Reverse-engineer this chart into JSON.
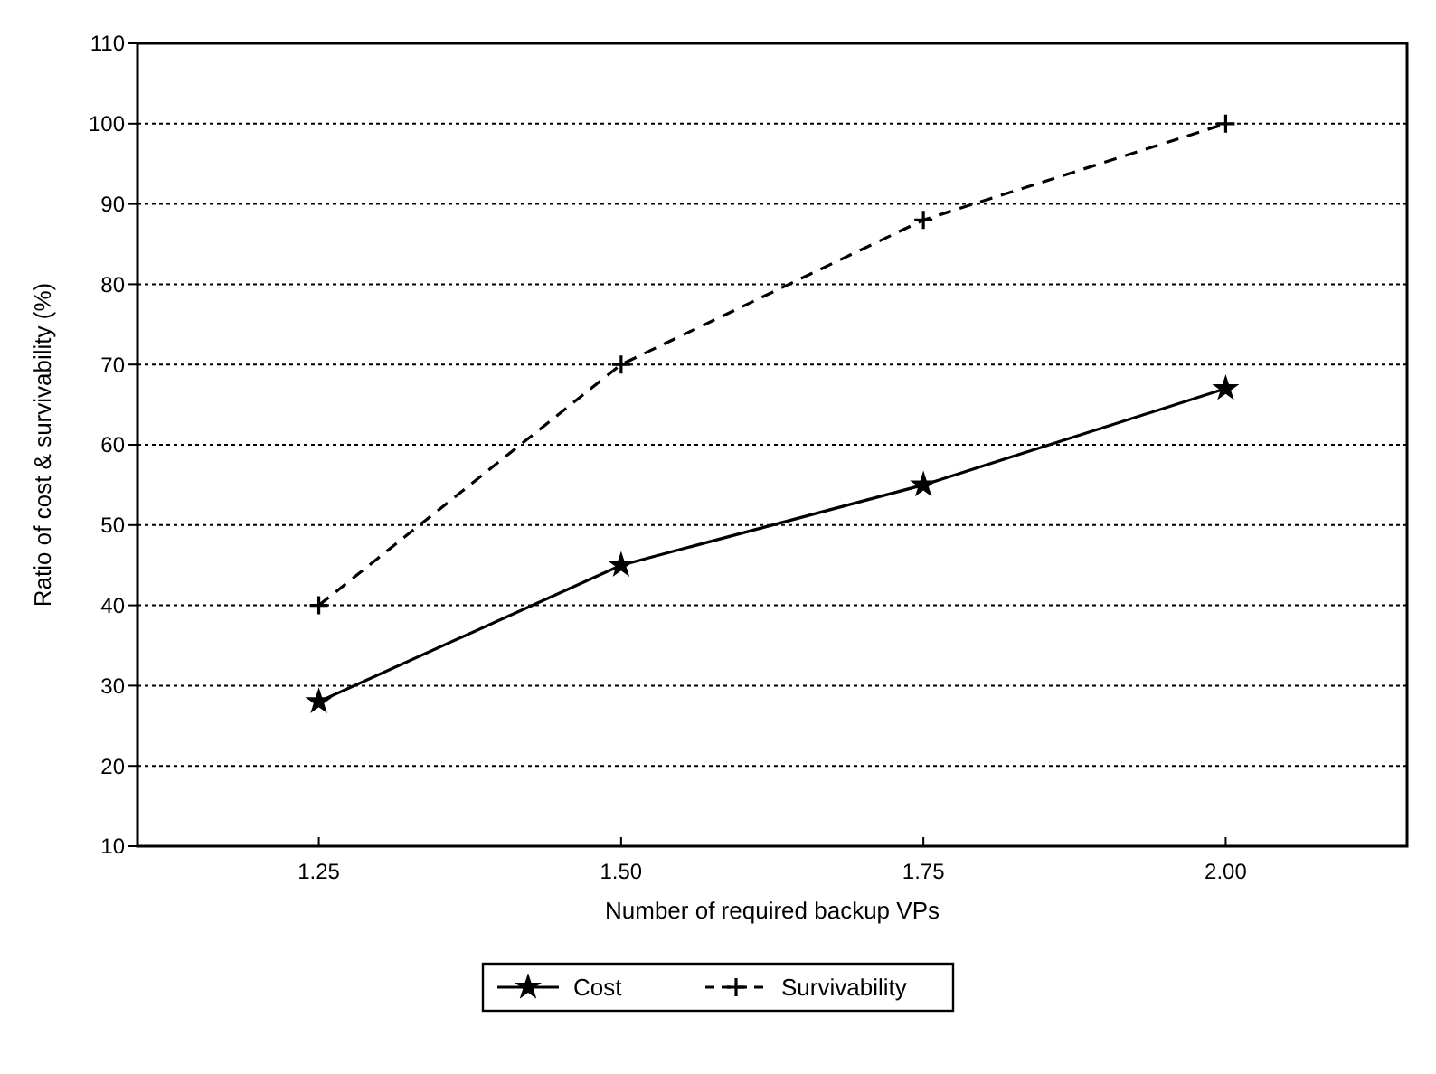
{
  "chart_data": {
    "type": "line",
    "xlabel": "Number of required backup VPs",
    "ylabel": "Ratio of cost & survivability (%)",
    "x": [
      1.25,
      1.5,
      1.75,
      2.0
    ],
    "xlim": [
      1.1,
      2.15
    ],
    "xticks": [
      1.25,
      {
        "value": 1.5,
        "label": "1.50"
      },
      1.75,
      {
        "value": 2.0,
        "label": "2.00"
      }
    ],
    "ylim": [
      10,
      110
    ],
    "yticks": [
      10,
      20,
      30,
      40,
      50,
      60,
      70,
      80,
      90,
      100,
      110
    ],
    "grid": "y",
    "legend": "bottom",
    "series": [
      {
        "name": "Cost",
        "color": "#000000",
        "values": [
          28,
          45,
          55,
          67
        ],
        "marker": "star",
        "line_style": "solid"
      },
      {
        "name": "Survivability",
        "color": "#000000",
        "values": [
          40,
          70,
          88,
          100
        ],
        "marker": "cross",
        "line_style": "dashed"
      }
    ]
  }
}
